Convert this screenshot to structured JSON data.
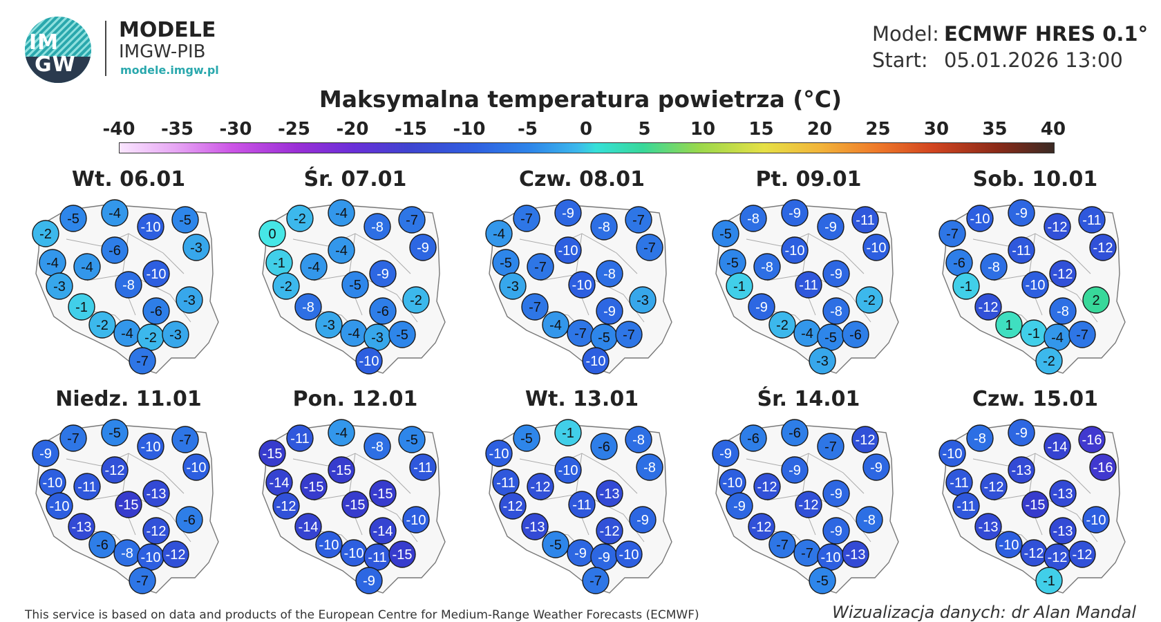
{
  "logo": {
    "line1": "IM",
    "line2": "GW"
  },
  "brand": {
    "title": "MODELE",
    "subtitle": "IMGW-PIB",
    "url": "modele.imgw.pl"
  },
  "meta": {
    "model_label": "Model:",
    "model_value": "ECMWF HRES 0.1°",
    "start_label": "Start:",
    "start_value": "05.01.2026 13:00"
  },
  "title": "Maksymalna temperatura powietrza (°C)",
  "scale": {
    "ticks": [
      "-40",
      "-35",
      "-30",
      "-25",
      "-20",
      "-15",
      "-10",
      "-5",
      "0",
      "5",
      "10",
      "15",
      "20",
      "25",
      "30",
      "35",
      "40"
    ],
    "min": -40,
    "max": 40
  },
  "days": [
    {
      "label": "Wt. 06.01",
      "values": [
        -5,
        -4,
        -5,
        -2,
        -10,
        -3,
        -6,
        -4,
        -4,
        -10,
        -3,
        -8,
        -3,
        -1,
        -6,
        -2,
        -4,
        -2,
        -3,
        -7
      ]
    },
    {
      "label": "Śr. 07.01",
      "values": [
        -2,
        -4,
        -7,
        0,
        -8,
        -9,
        -4,
        -1,
        -4,
        -9,
        -2,
        -5,
        -2,
        -8,
        -6,
        -3,
        -4,
        -3,
        -5,
        -10
      ]
    },
    {
      "label": "Czw. 08.01",
      "values": [
        -7,
        -9,
        -7,
        -4,
        -8,
        -7,
        -10,
        -5,
        -7,
        -8,
        -3,
        -10,
        -3,
        -7,
        -9,
        -4,
        -7,
        -5,
        -7,
        -10
      ]
    },
    {
      "label": "Pt. 09.01",
      "values": [
        -8,
        -9,
        -11,
        -5,
        -9,
        -10,
        -10,
        -5,
        -8,
        -9,
        -1,
        -11,
        -2,
        -9,
        -8,
        -2,
        -4,
        -5,
        -6,
        -3
      ]
    },
    {
      "label": "Sob. 10.01",
      "values": [
        -10,
        -9,
        -11,
        -7,
        -12,
        -12,
        -11,
        -6,
        -8,
        -12,
        -1,
        -10,
        2,
        -12,
        -8,
        1,
        -1,
        -4,
        -7,
        -2
      ]
    },
    {
      "label": "Niedz. 11.01",
      "values": [
        -7,
        -5,
        -7,
        -9,
        -10,
        -10,
        -12,
        -10,
        -11,
        -13,
        -10,
        -15,
        -6,
        -13,
        -12,
        -6,
        -8,
        -10,
        -12,
        -7
      ]
    },
    {
      "label": "Pon. 12.01",
      "values": [
        -11,
        -4,
        -5,
        -15,
        -8,
        -11,
        -15,
        -14,
        -15,
        -15,
        -12,
        -15,
        -10,
        -14,
        -14,
        -10,
        -10,
        -11,
        -15,
        -9
      ]
    },
    {
      "label": "Wt. 13.01",
      "values": [
        -5,
        -1,
        -8,
        -10,
        -6,
        -8,
        -10,
        -11,
        -12,
        -13,
        -12,
        -11,
        -9,
        -13,
        -12,
        -5,
        -9,
        -9,
        -10,
        -7
      ]
    },
    {
      "label": "Śr. 14.01",
      "values": [
        -6,
        -6,
        -12,
        -9,
        -7,
        -9,
        -9,
        -10,
        -12,
        -9,
        -9,
        -12,
        -8,
        -12,
        -9,
        -7,
        -7,
        -10,
        -13,
        -5
      ]
    },
    {
      "label": "Czw. 15.01",
      "values": [
        -8,
        -9,
        -16,
        -10,
        -14,
        -16,
        -13,
        -11,
        -12,
        -13,
        -11,
        -15,
        -10,
        -13,
        -13,
        -10,
        -12,
        -12,
        -12,
        -1
      ]
    }
  ],
  "footer": "This service is based on data and products of the European Centre for Medium-Range Weather Forecasts (ECMWF)",
  "credit": "Wizualizacja danych: dr Alan Mandal"
}
